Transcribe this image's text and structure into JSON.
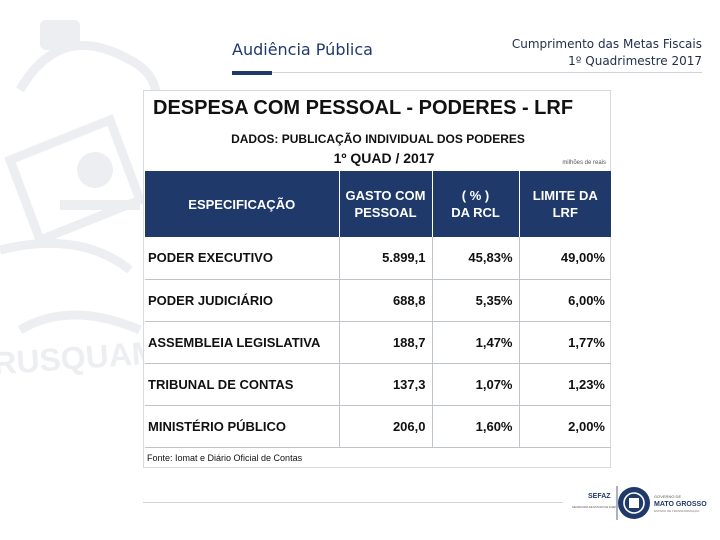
{
  "header": {
    "left_title": "Audiência Pública",
    "right_line1": "Cumprimento das Metas Fiscais",
    "right_line2": "1º Quadrimestre 2017"
  },
  "slide": {
    "title": "DESPESA COM PESSOAL - PODERES - LRF",
    "subtitle": "DADOS: PUBLICAÇÃO INDIVIDUAL DOS PODERES",
    "period": "1º QUAD / 2017",
    "unit_note": "milhões de reais",
    "columns": [
      {
        "line1": "ESPECIFICAÇÃO",
        "line2": ""
      },
      {
        "line1": "GASTO COM",
        "line2": "PESSOAL"
      },
      {
        "line1": "( % )",
        "line2": "DA RCL"
      },
      {
        "line1": "LIMITE DA",
        "line2": "LRF"
      }
    ],
    "rows": [
      {
        "name": "PODER EXECUTIVO",
        "gasto": "5.899,1",
        "rcl": "45,83%",
        "limite": "49,00%"
      },
      {
        "name": "PODER JUDICIÁRIO",
        "gasto": "688,8",
        "rcl": "5,35%",
        "limite": "6,00%"
      },
      {
        "name": "ASSEMBLEIA LEGISLATIVA",
        "gasto": "188,7",
        "rcl": "1,47%",
        "limite": "1,77%"
      },
      {
        "name": "TRIBUNAL DE CONTAS",
        "gasto": "137,3",
        "rcl": "1,07%",
        "limite": "1,23%"
      },
      {
        "name": "MINISTÉRIO PÚBLICO",
        "gasto": "206,0",
        "rcl": "1,60%",
        "limite": "2,00%"
      }
    ],
    "source": "Fonte: Iomat e Diário Oficial de Contas"
  },
  "watermark": {
    "text": "RUSQUAM"
  },
  "footer": {
    "sefaz_label": "SEFAZ",
    "sefaz_sub": "SECRETARIA DE ESTADO DE FAZENDA",
    "gov_label1": "GOVERNO DE",
    "gov_label2": "MATO GROSSO",
    "gov_sub": "ESTADO DE TRANSFORMAÇÃO"
  },
  "colors": {
    "primary": "#1f3a6a",
    "watermark": "#eceef1"
  }
}
